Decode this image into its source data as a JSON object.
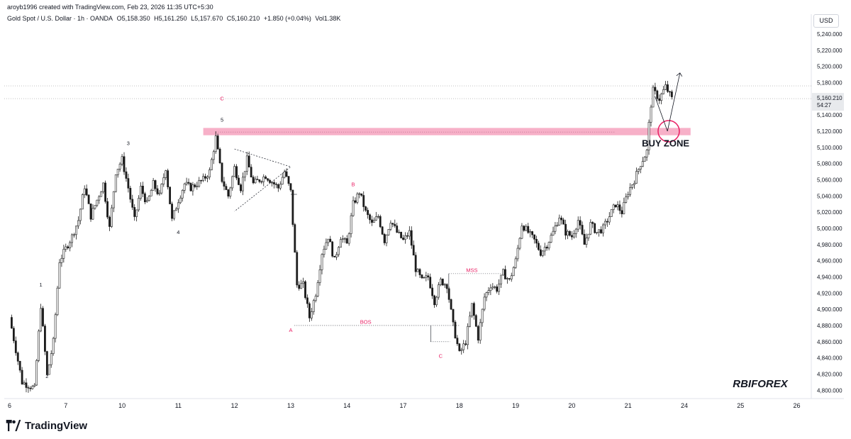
{
  "header": {
    "created_by": "aroyb1996 created with TradingView.com, Feb 23, 2026 11:35 UTC+5:30"
  },
  "legend": {
    "symbol": "Gold Spot / U.S. Dollar · 1h · OANDA",
    "open": "O5,158.350",
    "high": "H5,161.250",
    "low": "L5,157.670",
    "close": "C5,160.210",
    "change": "+1.850 (+0.04%)",
    "volume": "Vol1.38K"
  },
  "currency": "USD",
  "price_label": {
    "value": "5,160.210",
    "countdown": "54:27"
  },
  "watermark": "RBIFOREX",
  "footer": {
    "brand": "TradingView"
  },
  "colors": {
    "candle": "#1b1b1b",
    "zone": "#f48fb1",
    "annotation_red": "#e91e63",
    "background": "#ffffff"
  },
  "chart_data": {
    "type": "candlestick",
    "symbol": "XAUUSD",
    "timeframe": "1h",
    "y_axis": {
      "range": [
        4790,
        5260
      ],
      "ticks": [
        "5,240.000",
        "5,220.000",
        "5,200.000",
        "5,180.000",
        "5,160.000",
        "5,140.000",
        "5,120.000",
        "5,100.000",
        "5,080.000",
        "5,060.000",
        "5,040.000",
        "5,020.000",
        "5,000.000",
        "4,980.000",
        "4,960.000",
        "4,940.000",
        "4,920.000",
        "4,900.000",
        "4,880.000",
        "4,860.000",
        "4,840.000",
        "4,820.000",
        "4,800.000"
      ],
      "tick_values": [
        5240,
        5220,
        5200,
        5180,
        5160,
        5140,
        5120,
        5100,
        5080,
        5060,
        5040,
        5020,
        5000,
        4980,
        4960,
        4940,
        4920,
        4900,
        4880,
        4860,
        4840,
        4820,
        4800
      ]
    },
    "x_axis": {
      "labels": [
        "6",
        "7",
        "10",
        "11",
        "12",
        "13",
        "14",
        "17",
        "18",
        "19",
        "20",
        "21",
        "24",
        "25",
        "26"
      ],
      "label_index": [
        0,
        9,
        18,
        27,
        36,
        45,
        54,
        63,
        72,
        81,
        90,
        99,
        108,
        117,
        126
      ]
    },
    "last_price": 5160.21,
    "path": [
      {
        "i": 0,
        "p": 4890
      },
      {
        "i": 2,
        "p": 4810
      },
      {
        "i": 4,
        "p": 4802
      },
      {
        "i": 5,
        "p": 4905
      },
      {
        "i": 6,
        "p": 4818
      },
      {
        "i": 7,
        "p": 4860
      },
      {
        "i": 8,
        "p": 4960
      },
      {
        "i": 10,
        "p": 4990
      },
      {
        "i": 11,
        "p": 5010
      },
      {
        "i": 12,
        "p": 5052
      },
      {
        "i": 13,
        "p": 5015
      },
      {
        "i": 15,
        "p": 5055
      },
      {
        "i": 16,
        "p": 5000
      },
      {
        "i": 17,
        "p": 5070
      },
      {
        "i": 18,
        "p": 5085
      },
      {
        "i": 19,
        "p": 5050
      },
      {
        "i": 20,
        "p": 5010
      },
      {
        "i": 21,
        "p": 5050
      },
      {
        "i": 22,
        "p": 5030
      },
      {
        "i": 23,
        "p": 5055
      },
      {
        "i": 24,
        "p": 5040
      },
      {
        "i": 25,
        "p": 5075
      },
      {
        "i": 26,
        "p": 5010
      },
      {
        "i": 27,
        "p": 5035
      },
      {
        "i": 28,
        "p": 5055
      },
      {
        "i": 29,
        "p": 5050
      },
      {
        "i": 31,
        "p": 5060
      },
      {
        "i": 32,
        "p": 5070
      },
      {
        "i": 33,
        "p": 5112
      },
      {
        "i": 34,
        "p": 5060
      },
      {
        "i": 35,
        "p": 5040
      },
      {
        "i": 36,
        "p": 5075
      },
      {
        "i": 37,
        "p": 5050
      },
      {
        "i": 38,
        "p": 5085
      },
      {
        "i": 39,
        "p": 5055
      },
      {
        "i": 41,
        "p": 5065
      },
      {
        "i": 43,
        "p": 5050
      },
      {
        "i": 44,
        "p": 5070
      },
      {
        "i": 45,
        "p": 5045
      },
      {
        "i": 46,
        "p": 4930
      },
      {
        "i": 47,
        "p": 4930
      },
      {
        "i": 48,
        "p": 4890
      },
      {
        "i": 49,
        "p": 4920
      },
      {
        "i": 50,
        "p": 4970
      },
      {
        "i": 51,
        "p": 4990
      },
      {
        "i": 52,
        "p": 4960
      },
      {
        "i": 53,
        "p": 4990
      },
      {
        "i": 54,
        "p": 4980
      },
      {
        "i": 55,
        "p": 5030
      },
      {
        "i": 56,
        "p": 5045
      },
      {
        "i": 57,
        "p": 5020
      },
      {
        "i": 58,
        "p": 5005
      },
      {
        "i": 59,
        "p": 5015
      },
      {
        "i": 60,
        "p": 4985
      },
      {
        "i": 61,
        "p": 5010
      },
      {
        "i": 62,
        "p": 4995
      },
      {
        "i": 63,
        "p": 4985
      },
      {
        "i": 64,
        "p": 4995
      },
      {
        "i": 65,
        "p": 4950
      },
      {
        "i": 66,
        "p": 4935
      },
      {
        "i": 67,
        "p": 4940
      },
      {
        "i": 68,
        "p": 4910
      },
      {
        "i": 69,
        "p": 4935
      },
      {
        "i": 70,
        "p": 4930
      },
      {
        "i": 71,
        "p": 4880
      },
      {
        "i": 72,
        "p": 4845
      },
      {
        "i": 73,
        "p": 4860
      },
      {
        "i": 74,
        "p": 4905
      },
      {
        "i": 75,
        "p": 4865
      },
      {
        "i": 76,
        "p": 4915
      },
      {
        "i": 77,
        "p": 4930
      },
      {
        "i": 78,
        "p": 4925
      },
      {
        "i": 79,
        "p": 4945
      },
      {
        "i": 80,
        "p": 4935
      },
      {
        "i": 81,
        "p": 4960
      },
      {
        "i": 82,
        "p": 5005
      },
      {
        "i": 83,
        "p": 4995
      },
      {
        "i": 84,
        "p": 4985
      },
      {
        "i": 85,
        "p": 4970
      },
      {
        "i": 86,
        "p": 4980
      },
      {
        "i": 87,
        "p": 4995
      },
      {
        "i": 88,
        "p": 5015
      },
      {
        "i": 89,
        "p": 4995
      },
      {
        "i": 90,
        "p": 4990
      },
      {
        "i": 91,
        "p": 5010
      },
      {
        "i": 92,
        "p": 4980
      },
      {
        "i": 93,
        "p": 5005
      },
      {
        "i": 94,
        "p": 4995
      },
      {
        "i": 95,
        "p": 5000
      },
      {
        "i": 96,
        "p": 5015
      },
      {
        "i": 97,
        "p": 5030
      },
      {
        "i": 98,
        "p": 5020
      },
      {
        "i": 99,
        "p": 5045
      },
      {
        "i": 100,
        "p": 5060
      },
      {
        "i": 101,
        "p": 5080
      },
      {
        "i": 102,
        "p": 5095
      },
      {
        "i": 102.5,
        "p": 5145
      },
      {
        "i": 103,
        "p": 5170
      },
      {
        "i": 104,
        "p": 5160
      },
      {
        "i": 105,
        "p": 5175
      },
      {
        "i": 106,
        "p": 5160
      }
    ],
    "zone": {
      "low": 5115,
      "high": 5124,
      "from_i": 31,
      "to_i": 109
    },
    "annotations": [
      {
        "text": "1",
        "i": 5,
        "p": 4928,
        "color": "#131722"
      },
      {
        "text": "2",
        "i": 6,
        "p": 4815,
        "color": "#131722"
      },
      {
        "text": "3",
        "i": 19,
        "p": 5103,
        "color": "#131722"
      },
      {
        "text": "4",
        "i": 27,
        "p": 4993,
        "color": "#131722"
      },
      {
        "text": "5",
        "i": 34,
        "p": 5132,
        "color": "#131722"
      },
      {
        "text": "C",
        "i": 34,
        "p": 5158,
        "color": "#e91e63"
      },
      {
        "text": "A",
        "i": 45,
        "p": 4872,
        "color": "#e91e63"
      },
      {
        "text": "B",
        "i": 55,
        "p": 5052,
        "color": "#e91e63"
      },
      {
        "text": "C",
        "i": 69,
        "p": 4840,
        "color": "#e91e63"
      },
      {
        "text": "BOS",
        "i": 57,
        "p": 4882,
        "color": "#e91e63"
      },
      {
        "text": "MSS",
        "i": 74,
        "p": 4946,
        "color": "#e91e63"
      },
      {
        "text": "BUY ZONE",
        "i": 105,
        "p": 5101,
        "color": "#131722"
      }
    ]
  }
}
